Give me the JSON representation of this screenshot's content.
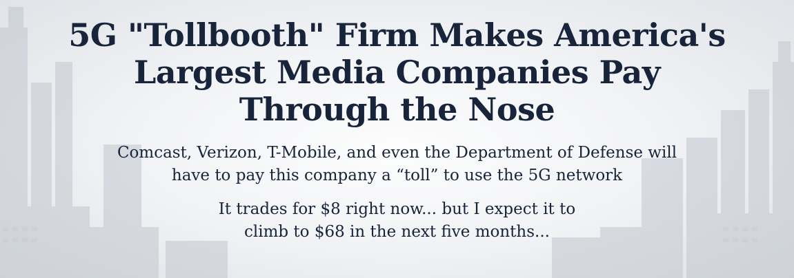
{
  "headline": {
    "line1": "5G \"Tollbooth\" Firm Makes America's",
    "line2": "Largest Media Companies Pay",
    "line3": "Through the Nose"
  },
  "subhead": {
    "line1": "Comcast, Verizon, T-Mobile, and even the Department of Defense will",
    "line2": "have to pay this company a “toll” to use the 5G network"
  },
  "teaser": {
    "line1": "It trades for $8 right now... but I expect it to",
    "line2": "climb to $68 in the next five months..."
  },
  "colors": {
    "text": "#17243a",
    "background": "#eceef1"
  }
}
